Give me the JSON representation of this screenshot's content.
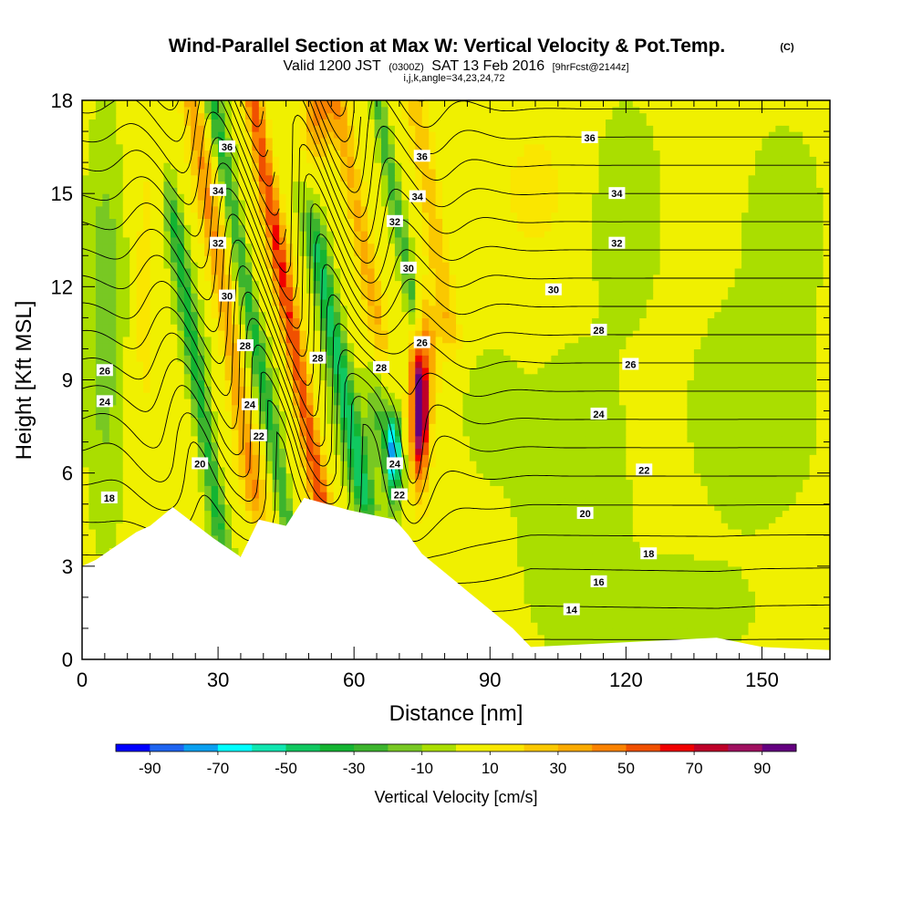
{
  "header": {
    "title": "Wind-Parallel Section at Max W: Vertical Velocity & Pot.Temp.",
    "title_mark": "(C)",
    "subtitle_a": "Valid 1200 JST",
    "subtitle_b": "(0300Z)",
    "subtitle_c": "SAT 13 Feb 2016",
    "subtitle_d": "[9hrFcst@2144z]",
    "subtitle_line3": "i,j,k,angle=34,23,24,72"
  },
  "chart_data": {
    "type": "heatmap",
    "title": "Wind-Parallel Section at Max W: Vertical Velocity & Pot.Temp.",
    "xlabel": "Distance [nm]",
    "ylabel": "Height [Kft MSL]",
    "xlim": [
      0,
      165
    ],
    "ylim": [
      0,
      18
    ],
    "x_ticks": [
      0,
      30,
      60,
      90,
      120,
      150
    ],
    "y_ticks": [
      0,
      3,
      6,
      9,
      12,
      15,
      18
    ],
    "colorbar": {
      "title": "Vertical Velocity [cm/s]",
      "tick_labels": [
        "-90",
        "-70",
        "-50",
        "-30",
        "-10",
        "10",
        "30",
        "50",
        "70",
        "90"
      ],
      "bins": [
        -100,
        -90,
        -80,
        -70,
        -60,
        -50,
        -40,
        -30,
        -20,
        -10,
        0,
        10,
        20,
        30,
        40,
        50,
        60,
        70,
        80,
        90,
        100
      ],
      "colors": [
        "#0000ff",
        "#1e64f0",
        "#0aa0f0",
        "#00ffff",
        "#10e6b0",
        "#10c860",
        "#14b432",
        "#3cb42d",
        "#78c823",
        "#aade00",
        "#f0f000",
        "#fae600",
        "#fac800",
        "#faaa00",
        "#fa8200",
        "#f05000",
        "#f00000",
        "#be0028",
        "#a01060",
        "#640080"
      ]
    },
    "terrain_kft": [
      [
        0,
        3.0
      ],
      [
        3,
        3.2
      ],
      [
        6,
        3.5
      ],
      [
        9,
        3.8
      ],
      [
        12,
        4.1
      ],
      [
        15,
        4.3
      ],
      [
        20,
        4.9
      ],
      [
        29,
        3.9
      ],
      [
        35,
        3.3
      ],
      [
        39,
        4.5
      ],
      [
        45,
        4.3
      ],
      [
        49,
        5.2
      ],
      [
        59,
        4.8
      ],
      [
        69,
        4.5
      ],
      [
        72,
        4.0
      ],
      [
        75,
        3.4
      ],
      [
        80,
        2.8
      ],
      [
        85,
        2.2
      ],
      [
        90,
        1.6
      ],
      [
        95,
        1.0
      ],
      [
        99,
        0.4
      ],
      [
        140,
        0.7
      ],
      [
        150,
        0.4
      ],
      [
        165,
        0.3
      ]
    ],
    "vertical_velocity_features": [
      {
        "type": "updraft",
        "x": 74,
        "y_kft": 7.8,
        "peak_cm_s": 95
      },
      {
        "type": "downdraft",
        "x": 69,
        "y_kft": 6.8,
        "peak_cm_s": -75
      },
      {
        "type": "downdraft",
        "x": 55,
        "y_kft": 10.5,
        "peak_cm_s": -50
      },
      {
        "type": "updraft",
        "x": 47,
        "y_kft": 9.5,
        "peak_cm_s": 55
      }
    ],
    "pot_temp_contours": {
      "interval_C": 1,
      "labels": [
        {
          "text": "36",
          "x": 32,
          "y": 16.5
        },
        {
          "text": "34",
          "x": 30,
          "y": 15.1
        },
        {
          "text": "32",
          "x": 30,
          "y": 13.4
        },
        {
          "text": "30",
          "x": 32,
          "y": 11.7
        },
        {
          "text": "28",
          "x": 36,
          "y": 10.1
        },
        {
          "text": "24",
          "x": 37,
          "y": 8.2
        },
        {
          "text": "22",
          "x": 39,
          "y": 7.2
        },
        {
          "text": "20",
          "x": 26,
          "y": 6.3
        },
        {
          "text": "26",
          "x": 5,
          "y": 9.3
        },
        {
          "text": "24",
          "x": 5,
          "y": 8.3
        },
        {
          "text": "18",
          "x": 6,
          "y": 5.2
        },
        {
          "text": "28",
          "x": 52,
          "y": 9.7
        },
        {
          "text": "28",
          "x": 66,
          "y": 9.4
        },
        {
          "text": "26",
          "x": 75,
          "y": 10.2
        },
        {
          "text": "24",
          "x": 69,
          "y": 6.3
        },
        {
          "text": "22",
          "x": 70,
          "y": 5.3
        },
        {
          "text": "36",
          "x": 75,
          "y": 16.2
        },
        {
          "text": "34",
          "x": 74,
          "y": 14.9
        },
        {
          "text": "32",
          "x": 69,
          "y": 14.1
        },
        {
          "text": "30",
          "x": 72,
          "y": 12.6
        },
        {
          "text": "36",
          "x": 112,
          "y": 16.8
        },
        {
          "text": "34",
          "x": 118,
          "y": 15.0
        },
        {
          "text": "32",
          "x": 118,
          "y": 13.4
        },
        {
          "text": "30",
          "x": 104,
          "y": 11.9
        },
        {
          "text": "28",
          "x": 114,
          "y": 10.6
        },
        {
          "text": "26",
          "x": 121,
          "y": 9.5
        },
        {
          "text": "24",
          "x": 114,
          "y": 7.9
        },
        {
          "text": "22",
          "x": 124,
          "y": 6.1
        },
        {
          "text": "20",
          "x": 111,
          "y": 4.7
        },
        {
          "text": "18",
          "x": 125,
          "y": 3.4
        },
        {
          "text": "16",
          "x": 114,
          "y": 2.5
        },
        {
          "text": "14",
          "x": 108,
          "y": 1.6
        }
      ]
    }
  }
}
